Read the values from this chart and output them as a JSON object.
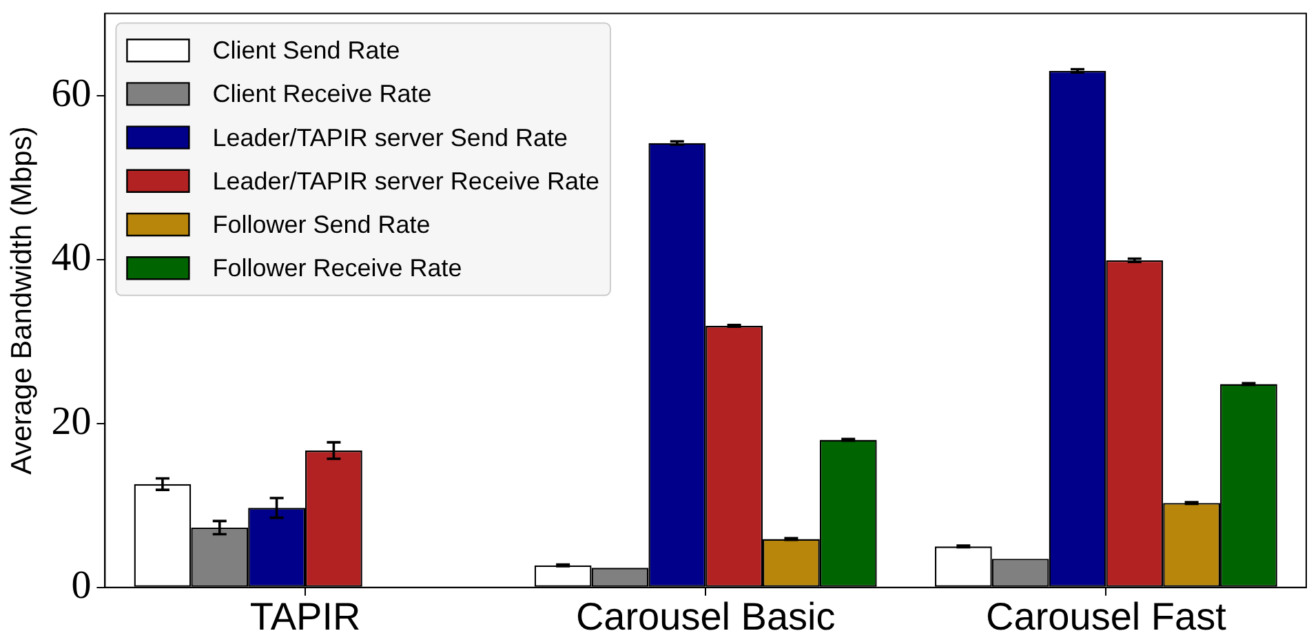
{
  "chart_data": {
    "type": "bar",
    "categories": [
      "TAPIR",
      "Carousel Basic",
      "Carousel Fast"
    ],
    "ylabel": "Average Bandwidth (Mbps)",
    "ylim": [
      0,
      70
    ],
    "yticks": [
      0,
      20,
      40,
      60
    ],
    "legend": "top left",
    "series": [
      {
        "name": "Client Send Rate",
        "color": "#ffffff",
        "values": [
          12.6,
          2.7,
          5.0
        ],
        "errors": [
          0.7,
          0.1,
          0.1
        ]
      },
      {
        "name": "Client Receive Rate",
        "color": "#808080",
        "values": [
          7.3,
          2.4,
          3.5
        ],
        "errors": [
          0.8,
          null,
          null
        ]
      },
      {
        "name": "Leader/TAPIR server Send Rate",
        "color": "#00008b",
        "values": [
          9.7,
          54.2,
          63.0
        ],
        "errors": [
          1.2,
          0.2,
          0.2
        ]
      },
      {
        "name": "Leader/TAPIR server Receive Rate",
        "color": "#b22222",
        "values": [
          16.7,
          31.9,
          39.9
        ],
        "errors": [
          1.0,
          0.1,
          0.2
        ]
      },
      {
        "name": "Follower Send Rate",
        "color": "#b8860b",
        "values": [
          0,
          5.9,
          10.3
        ],
        "errors": [
          null,
          0.1,
          0.1
        ]
      },
      {
        "name": "Follower Receive Rate",
        "color": "#006400",
        "values": [
          0,
          18.0,
          24.8
        ],
        "errors": [
          null,
          0.1,
          0.1
        ]
      }
    ]
  }
}
